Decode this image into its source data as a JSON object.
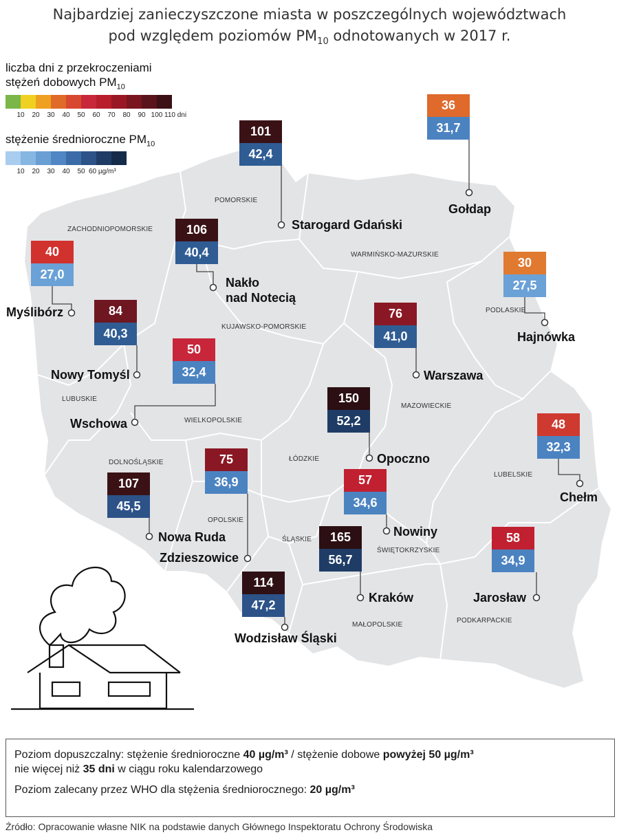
{
  "title": {
    "line1": "Najbardziej zanieczyszczone miasta w poszczególnych województwach",
    "line2_pre": "pod względem poziomów PM",
    "line2_sub": "10",
    "line2_post": " odnotowanych w 2017 r."
  },
  "legend_days": {
    "title_line1": "liczba dni z przekroczeniami",
    "title_line2_pre": "stężeń dobowych PM",
    "title_line2_sub": "10",
    "colors": [
      "#7ab648",
      "#f0d020",
      "#f0a020",
      "#e06a28",
      "#d84830",
      "#c8283a",
      "#b81e2c",
      "#9a1826",
      "#7a1620",
      "#5a141c",
      "#3c1014"
    ],
    "ticks": [
      "10",
      "20",
      "30",
      "40",
      "50",
      "60",
      "70",
      "80",
      "90",
      "100",
      "110 dni"
    ]
  },
  "legend_conc": {
    "title_pre": "stężenie średnioroczne PM",
    "title_sub": "10",
    "colors": [
      "#a8cdef",
      "#86b6e2",
      "#6a9fd4",
      "#4f86c3",
      "#3c6ca8",
      "#2c5288",
      "#1f3c66",
      "#152b4a"
    ],
    "ticks": [
      "10",
      "20",
      "30",
      "40",
      "50",
      "60 µg/m³"
    ]
  },
  "regions": [
    {
      "name": "POMORSKIE"
    },
    {
      "name": "ZACHODNIOPOMORSKIE"
    },
    {
      "name": "WARMIŃSKO-MAZURSKIE"
    },
    {
      "name": "PODLASKIE"
    },
    {
      "name": "KUJAWSKO-POMORSKIE"
    },
    {
      "name": "LUBUSKIE"
    },
    {
      "name": "WIELKOPOLSKIE"
    },
    {
      "name": "MAZOWIECKIE"
    },
    {
      "name": "DOLNOŚLĄSKIE"
    },
    {
      "name": "ŁÓDZKIE"
    },
    {
      "name": "LUBELSKIE"
    },
    {
      "name": "OPOLSKIE"
    },
    {
      "name": "ŚLĄSKIE"
    },
    {
      "name": "ŚWIĘTOKRZYSKIE"
    },
    {
      "name": "MAŁOPOLSKIE"
    },
    {
      "name": "PODKARPACKIE"
    }
  ],
  "cities": [
    {
      "name": "Starogard Gdański",
      "days": "101",
      "conc": "42,4",
      "days_color": "#3a1216",
      "conc_color": "#2f5c93"
    },
    {
      "name": "Gołdap",
      "days": "36",
      "conc": "31,7",
      "days_color": "#df6a2c",
      "conc_color": "#4b83c1"
    },
    {
      "name": "Nakło\nnad Notecią",
      "days": "106",
      "conc": "40,4",
      "days_color": "#3a1216",
      "conc_color": "#2f5c93"
    },
    {
      "name": "Myślibórz",
      "days": "40",
      "conc": "27,0",
      "days_color": "#d2322e",
      "conc_color": "#6aa1d6"
    },
    {
      "name": "Nowy Tomyśl",
      "days": "84",
      "conc": "40,3",
      "days_color": "#6e1720",
      "conc_color": "#2f5c93"
    },
    {
      "name": "Wschowa",
      "days": "50",
      "conc": "32,4",
      "days_color": "#c8263a",
      "conc_color": "#4b83c1"
    },
    {
      "name": "Warszawa",
      "days": "76",
      "conc": "41,0",
      "days_color": "#8a1824",
      "conc_color": "#2f5c93"
    },
    {
      "name": "Hajnówka",
      "days": "30",
      "conc": "27,5",
      "days_color": "#e07a30",
      "conc_color": "#6aa1d6"
    },
    {
      "name": "Opoczno",
      "days": "150",
      "conc": "52,2",
      "days_color": "#2b0f12",
      "conc_color": "#1f3c66"
    },
    {
      "name": "Chełm",
      "days": "48",
      "conc": "32,3",
      "days_color": "#cf3a30",
      "conc_color": "#4b83c1"
    },
    {
      "name": "Nowa Ruda",
      "days": "107",
      "conc": "45,5",
      "days_color": "#3a1216",
      "conc_color": "#2c5288"
    },
    {
      "name": "Zdzieszowice",
      "days": "75",
      "conc": "36,9",
      "days_color": "#8a1824",
      "conc_color": "#4b83c1"
    },
    {
      "name": "Nowiny",
      "days": "57",
      "conc": "34,6",
      "days_color": "#c02030",
      "conc_color": "#4b83c1"
    },
    {
      "name": "Kraków",
      "days": "165",
      "conc": "56,7",
      "days_color": "#2b0f12",
      "conc_color": "#1f3c66"
    },
    {
      "name": "Wodzisław Śląski",
      "days": "114",
      "conc": "47,2",
      "days_color": "#2f1014",
      "conc_color": "#2c5288"
    },
    {
      "name": "Jarosław",
      "days": "58",
      "conc": "34,9",
      "days_color": "#c02030",
      "conc_color": "#4b83c1"
    }
  ],
  "info": {
    "l1_a": "Poziom dopuszczalny: stężenie średnioroczne ",
    "l1_b": "40 µg/m³",
    "l1_c": " / stężenie dobowe ",
    "l1_d": "powyżej 50 µg/m³",
    "l2_a": "nie więcej niż ",
    "l2_b": "35 dni",
    "l2_c": " w ciągu roku kalendarzowego",
    "l3_a": "Poziom zalecany przez WHO dla stężenia średniorocznego: ",
    "l3_b": "20 µg/m³"
  },
  "source": "Źródło: Opracowanie własne NIK na podstawie danych Głównego Inspektoratu Ochrony Środowiska"
}
